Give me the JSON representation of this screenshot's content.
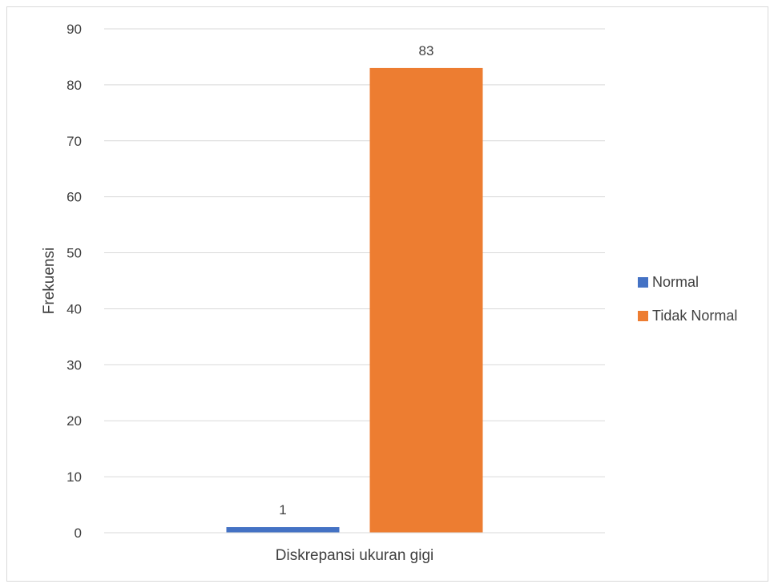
{
  "chart_data": {
    "type": "bar",
    "title": "",
    "xlabel": "Diskrepansi ukuran gigi",
    "ylabel": "Frekuensi",
    "ylim": [
      0,
      90
    ],
    "ytick_step": 10,
    "yticks": [
      "0",
      "10",
      "20",
      "30",
      "40",
      "50",
      "60",
      "70",
      "80",
      "90"
    ],
    "categories": [
      "Diskrepansi ukuran gigi"
    ],
    "series": [
      {
        "name": "Normal",
        "values": [
          1
        ],
        "color": "#4472c4"
      },
      {
        "name": "Tidak Normal",
        "values": [
          83
        ],
        "color": "#ed7d31"
      }
    ],
    "data_labels": [
      "1",
      "83"
    ],
    "grid": true,
    "legend_position": "right"
  }
}
